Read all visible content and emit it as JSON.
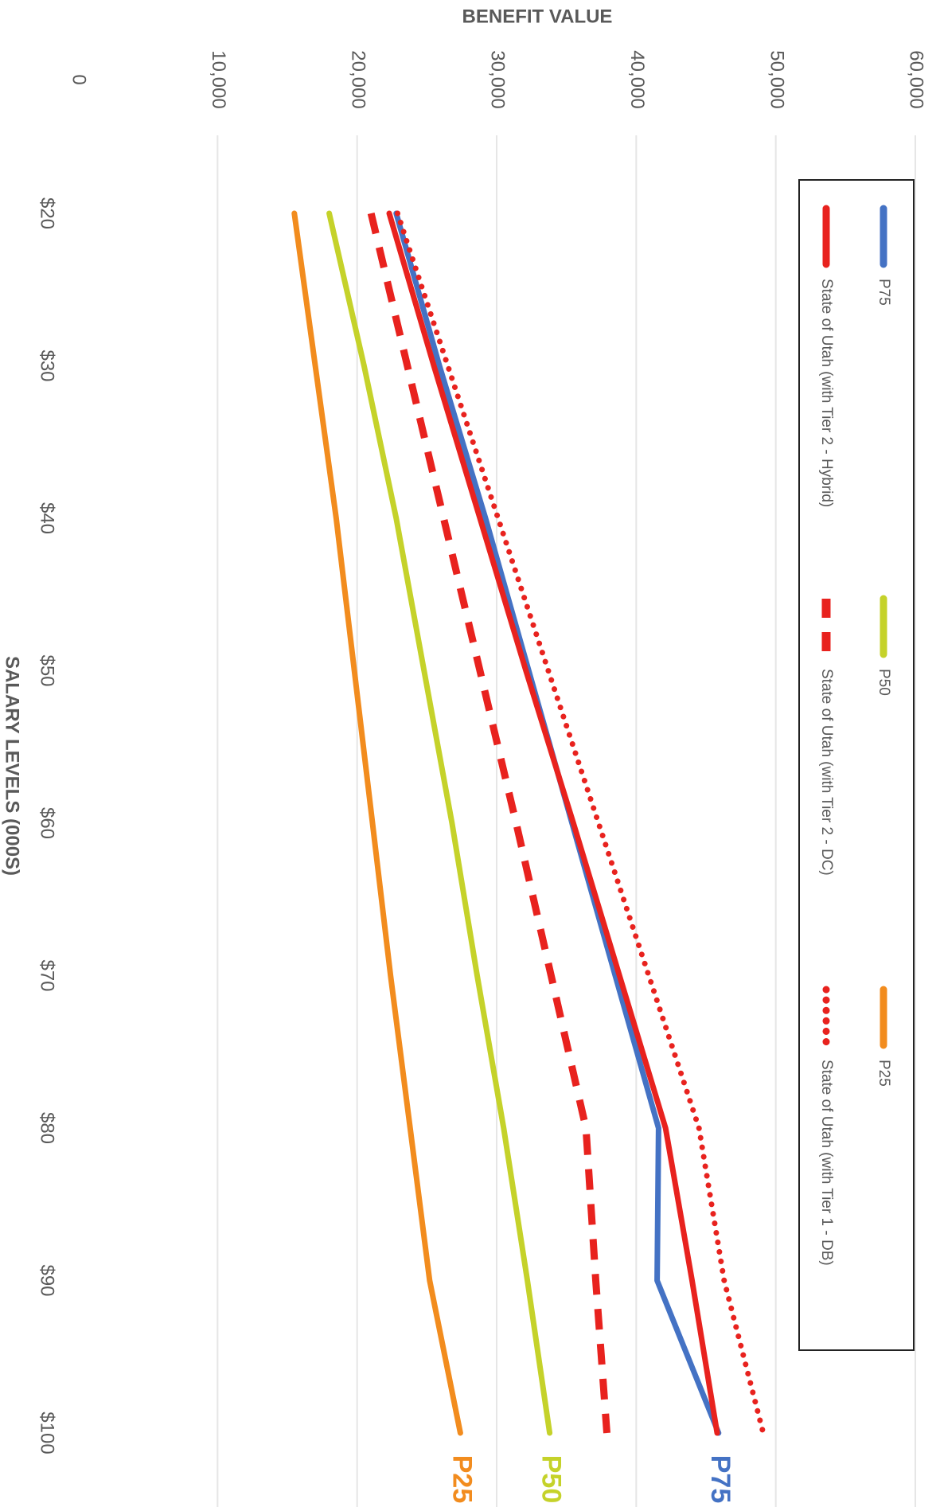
{
  "chart_data": {
    "type": "line",
    "orientation": "rotated-90-clockwise",
    "title": "",
    "xlabel": "SALARY LEVELS (000S)",
    "ylabel": "BENEFIT VALUE",
    "categories": [
      "$20",
      "$30",
      "$40",
      "$50",
      "$60",
      "$70",
      "$80",
      "$90",
      "$100"
    ],
    "x": [
      20,
      30,
      40,
      50,
      60,
      70,
      80,
      90,
      100
    ],
    "ylim": [
      0,
      60000
    ],
    "yticks": [
      0,
      10000,
      20000,
      30000,
      40000,
      50000,
      60000
    ],
    "ytick_labels": [
      "0",
      "10,000",
      "20,000",
      "30,000",
      "40,000",
      "50,000",
      "60,000"
    ],
    "grid": true,
    "legend_position": "right",
    "series": [
      {
        "name": "P75",
        "color": "#4472C4",
        "style": "solid",
        "end_label": "P75",
        "values": [
          22800,
          25900,
          29200,
          32300,
          35400,
          38500,
          41600,
          41500,
          45900
        ]
      },
      {
        "name": "P50",
        "color": "#C5D22A",
        "style": "solid",
        "end_label": "P50",
        "values": [
          18000,
          20500,
          22800,
          24800,
          26800,
          28600,
          30500,
          32200,
          33800
        ]
      },
      {
        "name": "P25",
        "color": "#F28C1E",
        "style": "solid",
        "end_label": "P25",
        "values": [
          15500,
          17000,
          18500,
          19800,
          21100,
          22400,
          23800,
          25200,
          27400
        ]
      },
      {
        "name": "State of Utah (with Tier 2 - Hybrid)",
        "color": "#E8221E",
        "style": "solid",
        "end_label": "",
        "values": [
          22300,
          25500,
          28800,
          32100,
          35500,
          38800,
          42100,
          44000,
          45800
        ]
      },
      {
        "name": "State of Utah (with Tier 2 - DC)",
        "color": "#E8221E",
        "style": "dashed",
        "end_label": "",
        "values": [
          21000,
          23600,
          26200,
          28800,
          31400,
          33900,
          36400,
          37100,
          37900
        ]
      },
      {
        "name": "State of Utah (with Tier 1 - DB)",
        "color": "#E8221E",
        "style": "dotted",
        "end_label": "",
        "values": [
          22900,
          26500,
          30100,
          33700,
          37300,
          40900,
          44500,
          46300,
          49100
        ]
      }
    ]
  }
}
